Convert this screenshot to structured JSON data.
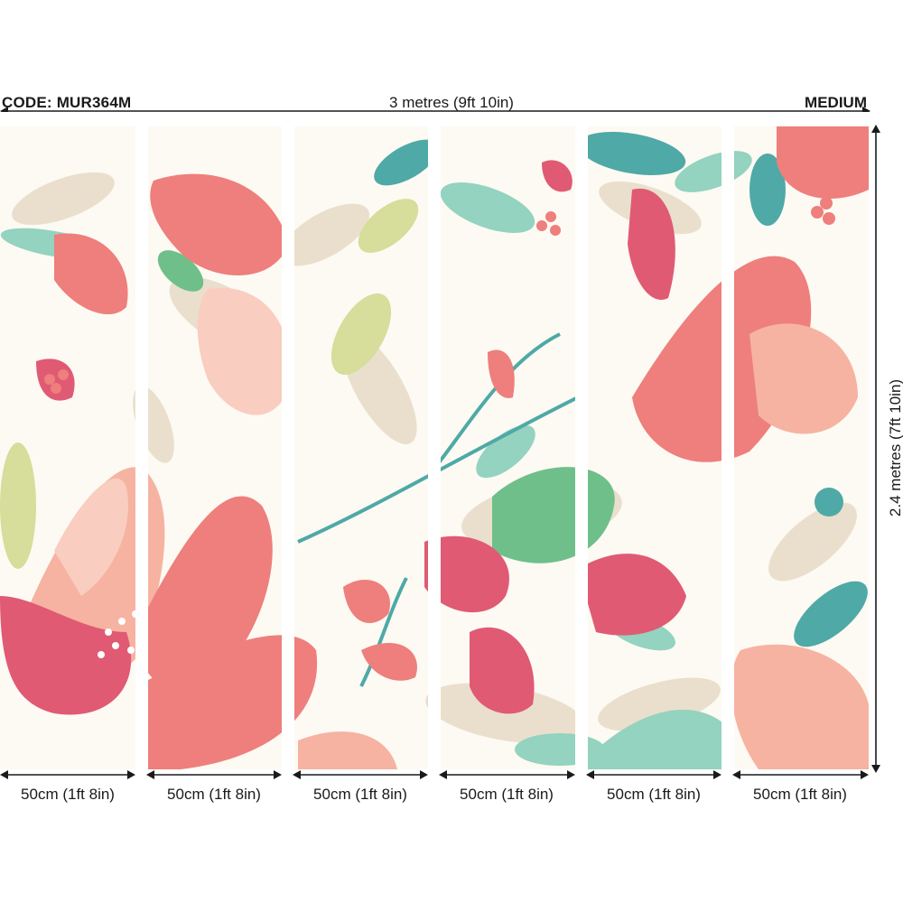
{
  "product": {
    "code_label": "CODE: MUR364M",
    "size_label": "MEDIUM",
    "width_label": "3 metres (9ft 10in)",
    "height_label": "2.4 metres (7ft 10in)"
  },
  "panels": [
    {
      "width_label": "50cm (1ft 8in)"
    },
    {
      "width_label": "50cm (1ft 8in)"
    },
    {
      "width_label": "50cm (1ft 8in)"
    },
    {
      "width_label": "50cm (1ft 8in)"
    },
    {
      "width_label": "50cm (1ft 8in)"
    },
    {
      "width_label": "50cm (1ft 8in)"
    }
  ],
  "palette": {
    "coral": "#ee7f7c",
    "deep_pink": "#e05a73",
    "peach": "#f6b3a2",
    "blush": "#f9cdbf",
    "beige": "#e8dcc9",
    "teal": "#4fa9a6",
    "mint": "#93d3c0",
    "sage": "#6fbf8a",
    "lime": "#d7dd9a",
    "cream": "#fdfaf3"
  },
  "icons": {
    "arrow_head": "arrow-icon"
  }
}
